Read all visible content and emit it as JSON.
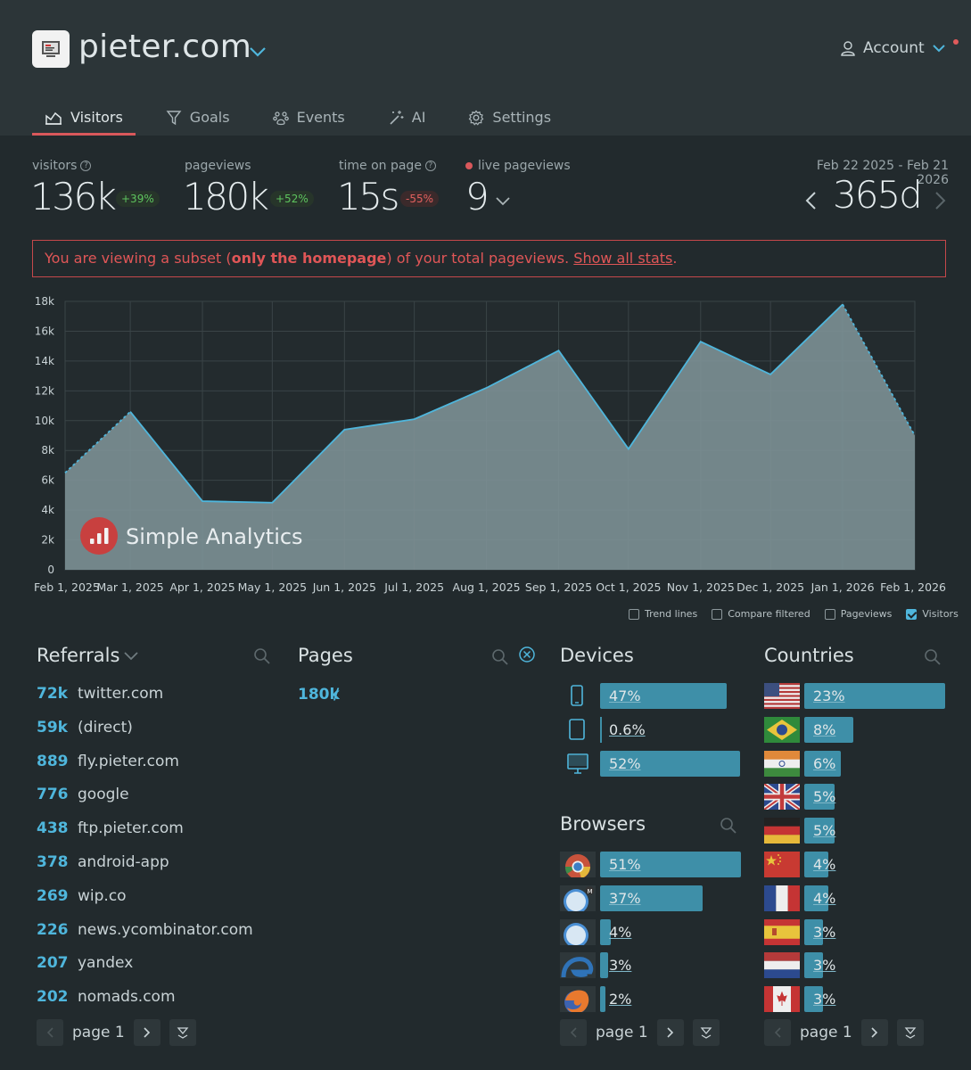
{
  "site": {
    "name": "pieter.com"
  },
  "account": {
    "label": "Account"
  },
  "tabs": [
    {
      "label": "Visitors",
      "icon": "chart-icon",
      "active": true
    },
    {
      "label": "Goals",
      "icon": "funnel-icon"
    },
    {
      "label": "Events",
      "icon": "paw-icon"
    },
    {
      "label": "AI",
      "icon": "wand-icon"
    },
    {
      "label": "Settings",
      "icon": "gear-icon"
    }
  ],
  "stats": {
    "visitors": {
      "label": "visitors",
      "value": "136k",
      "change": "+39%"
    },
    "pageviews": {
      "label": "pageviews",
      "value": "180k",
      "change": "+52%"
    },
    "time_on_page": {
      "label": "time on page",
      "value": "15s",
      "change": "-55%"
    },
    "live": {
      "label": "live pageviews",
      "value": "9"
    },
    "date_range": "Feb 22 2025 - Feb 21 2026",
    "period": "365d"
  },
  "notice": {
    "prefix": "You are viewing a subset (",
    "bold": "only the homepage",
    "middle": ") of your total pageviews. ",
    "link": "Show all stats",
    "suffix": "."
  },
  "chart_data": {
    "type": "area",
    "watermark": "Simple Analytics",
    "x": [
      "Feb 1, 2025",
      "Mar 1, 2025",
      "Apr 1, 2025",
      "May 1, 2025",
      "Jun 1, 2025",
      "Jul 1, 2025",
      "Aug 1, 2025",
      "Sep 1, 2025",
      "Oct 1, 2025",
      "Nov 1, 2025",
      "Dec 1, 2025",
      "Jan 1, 2026",
      "Feb 1, 2026"
    ],
    "y_ticks": [
      "18k",
      "16k",
      "14k",
      "12k",
      "10k",
      "8k",
      "6k",
      "4k",
      "2k",
      "0"
    ],
    "ylim": [
      0,
      18000
    ],
    "grid": true,
    "series": [
      {
        "name": "Visitors",
        "points": [
          [
            "Feb 22, 2025",
            6500
          ],
          [
            "Mar 1, 2025",
            10600
          ],
          [
            "Apr 1, 2025",
            4600
          ],
          [
            "May 1, 2025",
            4500
          ],
          [
            "Jun 1, 2025",
            9400
          ],
          [
            "Jul 1, 2025",
            10100
          ],
          [
            "Aug 1, 2025",
            12200
          ],
          [
            "Sep 1, 2025",
            14700
          ],
          [
            "Oct 1, 2025",
            8100
          ],
          [
            "Nov 1, 2025",
            15300
          ],
          [
            "Dec 1, 2025",
            13100
          ],
          [
            "Jan 1, 2026",
            17800
          ],
          [
            "Feb 1, 2026",
            9000
          ]
        ]
      }
    ],
    "legend": [
      {
        "label": "Trend lines",
        "checked": false
      },
      {
        "label": "Compare filtered",
        "checked": false
      },
      {
        "label": "Pageviews",
        "checked": false
      },
      {
        "label": "Visitors",
        "checked": true
      }
    ]
  },
  "referrals": {
    "title": "Referrals",
    "items": [
      {
        "count": "72k",
        "name": "twitter.com"
      },
      {
        "count": "59k",
        "name": "(direct)"
      },
      {
        "count": "889",
        "name": "fly.pieter.com"
      },
      {
        "count": "776",
        "name": "google"
      },
      {
        "count": "438",
        "name": "ftp.pieter.com"
      },
      {
        "count": "378",
        "name": "android-app"
      },
      {
        "count": "269",
        "name": "wip.co"
      },
      {
        "count": "226",
        "name": "news.ycombinator.com"
      },
      {
        "count": "207",
        "name": "yandex"
      },
      {
        "count": "202",
        "name": "nomads.com"
      }
    ],
    "page": "page 1"
  },
  "pages": {
    "title": "Pages",
    "items": [
      {
        "count": "180k",
        "path": "/"
      }
    ]
  },
  "devices": {
    "title": "Devices",
    "items": [
      {
        "icon": "phone-icon",
        "percent": "47%",
        "value": 47
      },
      {
        "icon": "tablet-icon",
        "percent": "0.6%",
        "value": 0.6
      },
      {
        "icon": "desktop-icon",
        "percent": "52%",
        "value": 52
      }
    ]
  },
  "browsers": {
    "title": "Browsers",
    "items": [
      {
        "icon": "chrome-icon",
        "percent": "51%",
        "value": 51
      },
      {
        "icon": "mobile-safari-icon",
        "percent": "37%",
        "value": 37
      },
      {
        "icon": "safari-icon",
        "percent": "4%",
        "value": 4
      },
      {
        "icon": "edge-icon",
        "percent": "3%",
        "value": 3
      },
      {
        "icon": "firefox-icon",
        "percent": "2%",
        "value": 2
      }
    ],
    "page": "page 1"
  },
  "countries": {
    "title": "Countries",
    "items": [
      {
        "flag": "us-flag-icon",
        "percent": "23%",
        "value": 23
      },
      {
        "flag": "br-flag-icon",
        "percent": "8%",
        "value": 8
      },
      {
        "flag": "in-flag-icon",
        "percent": "6%",
        "value": 6
      },
      {
        "flag": "gb-flag-icon",
        "percent": "5%",
        "value": 5
      },
      {
        "flag": "de-flag-icon",
        "percent": "5%",
        "value": 5
      },
      {
        "flag": "cn-flag-icon",
        "percent": "4%",
        "value": 4
      },
      {
        "flag": "fr-flag-icon",
        "percent": "4%",
        "value": 4
      },
      {
        "flag": "es-flag-icon",
        "percent": "3%",
        "value": 3
      },
      {
        "flag": "nl-flag-icon",
        "percent": "3%",
        "value": 3
      },
      {
        "flag": "ca-flag-icon",
        "percent": "3%",
        "value": 3
      }
    ],
    "page": "page 1"
  },
  "colors": {
    "accent": "#4fb6dc",
    "bar": "#3e8fa8",
    "danger": "#d9585b",
    "positive": "#5ec45e"
  }
}
